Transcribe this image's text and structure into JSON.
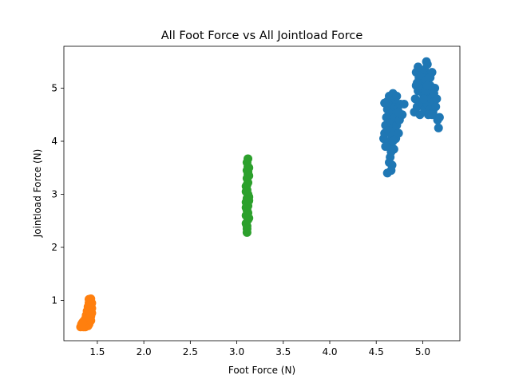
{
  "chart_data": {
    "type": "scatter",
    "title": "All Foot Force vs All Jointload Force",
    "xlabel": "Foot Force (N)",
    "ylabel": "Jointload Force (N)",
    "xlim": [
      1.14,
      5.4
    ],
    "ylim": [
      0.24,
      5.79
    ],
    "xticks": [
      "1.5",
      "2.0",
      "2.5",
      "3.0",
      "3.5",
      "4.0",
      "4.5",
      "5.0"
    ],
    "yticks": [
      "1",
      "2",
      "3",
      "4",
      "5"
    ],
    "grid": false,
    "colors": {
      "blue": "#1f77b4",
      "orange": "#ff7f0e",
      "green": "#2ca02c"
    },
    "series": [
      {
        "color": "#1f77b4",
        "points": [
          [
            4.58,
            4.05
          ],
          [
            4.59,
            4.15
          ],
          [
            4.6,
            4.3
          ],
          [
            4.61,
            4.45
          ],
          [
            4.62,
            4.6
          ],
          [
            4.62,
            4.75
          ],
          [
            4.63,
            3.95
          ],
          [
            4.63,
            4.2
          ],
          [
            4.64,
            4.5
          ],
          [
            4.64,
            4.85
          ],
          [
            4.65,
            3.7
          ],
          [
            4.65,
            4.0
          ],
          [
            4.66,
            4.35
          ],
          [
            4.66,
            4.7
          ],
          [
            4.67,
            3.55
          ],
          [
            4.67,
            4.1
          ],
          [
            4.68,
            4.55
          ],
          [
            4.68,
            4.9
          ],
          [
            4.69,
            3.85
          ],
          [
            4.69,
            4.25
          ],
          [
            4.7,
            4.65
          ],
          [
            4.7,
            4.45
          ],
          [
            4.71,
            4.05
          ],
          [
            4.72,
            4.3
          ],
          [
            4.73,
            4.6
          ],
          [
            4.74,
            4.15
          ],
          [
            4.75,
            4.4
          ],
          [
            4.76,
            4.7
          ],
          [
            4.78,
            4.5
          ],
          [
            4.8,
            4.7
          ],
          [
            4.62,
            3.4
          ],
          [
            4.64,
            3.6
          ],
          [
            4.66,
            3.8
          ],
          [
            4.6,
            3.9
          ],
          [
            4.7,
            4.8
          ],
          [
            4.72,
            4.85
          ],
          [
            4.68,
            4.0
          ],
          [
            4.66,
            3.45
          ],
          [
            4.59,
            4.72
          ],
          [
            4.74,
            4.55
          ],
          [
            4.91,
            4.55
          ],
          [
            4.92,
            4.8
          ],
          [
            4.93,
            5.05
          ],
          [
            4.93,
            5.3
          ],
          [
            4.94,
            4.65
          ],
          [
            4.95,
            4.95
          ],
          [
            4.96,
            5.2
          ],
          [
            4.97,
            4.75
          ],
          [
            4.98,
            5.0
          ],
          [
            4.99,
            5.25
          ],
          [
            5.0,
            4.7
          ],
          [
            5.0,
            4.9
          ],
          [
            5.01,
            5.1
          ],
          [
            5.02,
            4.6
          ],
          [
            5.02,
            5.35
          ],
          [
            5.03,
            4.85
          ],
          [
            5.04,
            5.15
          ],
          [
            5.05,
            5.45
          ],
          [
            5.05,
            4.7
          ],
          [
            5.06,
            4.95
          ],
          [
            5.07,
            5.25
          ],
          [
            5.08,
            4.6
          ],
          [
            5.08,
            5.05
          ],
          [
            5.09,
            4.8
          ],
          [
            5.1,
            5.3
          ],
          [
            5.11,
            4.55
          ],
          [
            5.12,
            4.75
          ],
          [
            5.13,
            5.0
          ],
          [
            5.14,
            4.65
          ],
          [
            5.15,
            4.8
          ],
          [
            5.16,
            4.4
          ],
          [
            5.17,
            4.25
          ],
          [
            5.18,
            4.45
          ],
          [
            5.04,
            5.5
          ],
          [
            4.95,
            5.4
          ],
          [
            5.06,
            4.5
          ],
          [
            4.97,
            4.5
          ],
          [
            5.1,
            4.5
          ],
          [
            5.0,
            5.0
          ],
          [
            5.03,
            4.95
          ],
          [
            4.94,
            5.1
          ],
          [
            5.08,
            5.2
          ],
          [
            5.12,
            4.9
          ],
          [
            5.01,
            4.8
          ],
          [
            5.05,
            5.05
          ]
        ]
      },
      {
        "color": "#ff7f0e",
        "points": [
          [
            1.32,
            0.5
          ],
          [
            1.33,
            0.55
          ],
          [
            1.34,
            0.52
          ],
          [
            1.35,
            0.6
          ],
          [
            1.36,
            0.58
          ],
          [
            1.37,
            0.65
          ],
          [
            1.38,
            0.55
          ],
          [
            1.38,
            0.72
          ],
          [
            1.39,
            0.62
          ],
          [
            1.39,
            0.8
          ],
          [
            1.4,
            0.68
          ],
          [
            1.4,
            0.88
          ],
          [
            1.41,
            0.75
          ],
          [
            1.41,
            0.95
          ],
          [
            1.42,
            0.82
          ],
          [
            1.42,
            1.0
          ],
          [
            1.43,
            0.9
          ],
          [
            1.43,
            0.7
          ],
          [
            1.42,
            0.6
          ],
          [
            1.4,
            0.52
          ],
          [
            1.37,
            0.5
          ],
          [
            1.35,
            0.5
          ],
          [
            1.41,
            0.55
          ],
          [
            1.43,
            0.62
          ],
          [
            1.44,
            0.85
          ],
          [
            1.44,
            0.95
          ],
          [
            1.42,
            0.92
          ],
          [
            1.39,
            0.7
          ],
          [
            1.36,
            0.62
          ],
          [
            1.41,
            1.02
          ],
          [
            1.43,
            1.03
          ],
          [
            1.4,
            0.78
          ],
          [
            1.38,
            0.64
          ],
          [
            1.34,
            0.58
          ],
          [
            1.42,
            0.68
          ],
          [
            1.44,
            0.76
          ]
        ]
      },
      {
        "color": "#2ca02c",
        "points": [
          [
            3.11,
            2.28
          ],
          [
            3.11,
            2.4
          ],
          [
            3.12,
            2.52
          ],
          [
            3.1,
            2.6
          ],
          [
            3.11,
            2.7
          ],
          [
            3.12,
            2.78
          ],
          [
            3.1,
            2.85
          ],
          [
            3.11,
            2.92
          ],
          [
            3.12,
            3.0
          ],
          [
            3.11,
            3.08
          ],
          [
            3.1,
            3.15
          ],
          [
            3.12,
            3.22
          ],
          [
            3.11,
            3.3
          ],
          [
            3.12,
            3.38
          ],
          [
            3.11,
            3.45
          ],
          [
            3.12,
            3.52
          ],
          [
            3.11,
            3.6
          ],
          [
            3.12,
            3.67
          ],
          [
            3.13,
            2.55
          ],
          [
            3.1,
            2.45
          ],
          [
            3.13,
            2.95
          ],
          [
            3.1,
            3.05
          ],
          [
            3.13,
            3.35
          ],
          [
            3.11,
            2.35
          ],
          [
            3.12,
            2.65
          ],
          [
            3.13,
            3.5
          ],
          [
            3.11,
            3.18
          ],
          [
            3.1,
            2.75
          ],
          [
            3.13,
            2.88
          ],
          [
            3.12,
            3.42
          ]
        ]
      }
    ]
  }
}
